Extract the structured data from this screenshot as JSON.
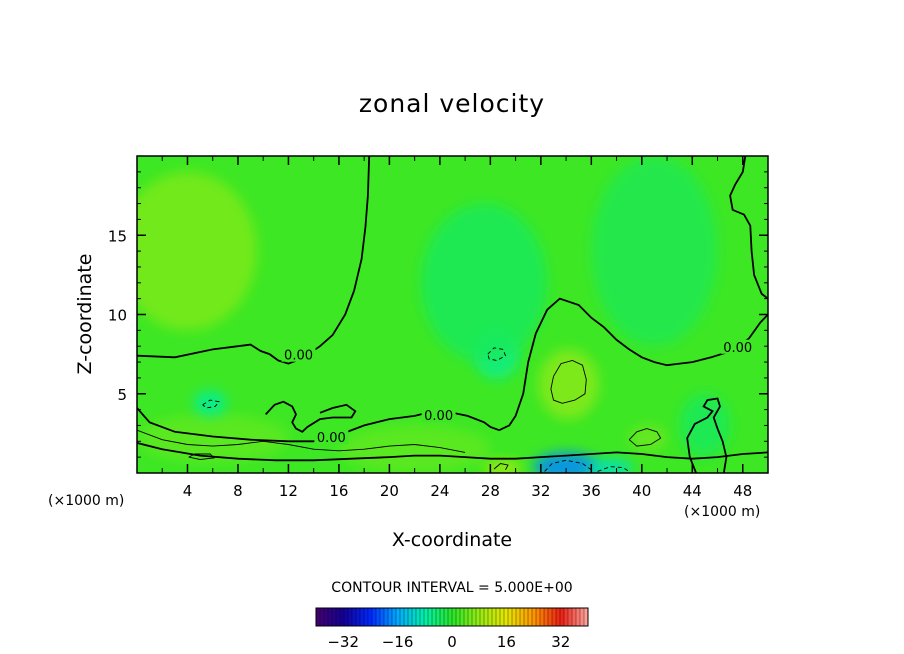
{
  "chart_data": {
    "type": "heatmap",
    "title": "zonal velocity",
    "xlabel": "X-coordinate",
    "ylabel": "Z-coordinate",
    "x_unit_left": "(×1000 m)",
    "x_unit_right": "(×1000 m)",
    "xlim": [
      0,
      50
    ],
    "ylim": [
      0,
      20
    ],
    "x_ticks": [
      4,
      8,
      12,
      16,
      20,
      24,
      28,
      32,
      36,
      40,
      44,
      48
    ],
    "y_ticks": [
      5,
      10,
      15
    ],
    "contour_interval_text": "CONTOUR INTERVAL = 5.000E+00",
    "colorbar": {
      "range": [
        -40,
        40
      ],
      "ticks": [
        -32,
        -16,
        0,
        16,
        32
      ],
      "colormap": "rainbow"
    },
    "zero_contour_labels": [
      {
        "text": "0.00",
        "x": 12.8,
        "z": 7.4
      },
      {
        "text": "0.00",
        "x": 15.4,
        "z": 2.2
      },
      {
        "text": "0.00",
        "x": 23.9,
        "z": 3.6
      },
      {
        "text": "0.00",
        "x": 47.6,
        "z": 7.9
      }
    ],
    "zero_contours": [
      [
        [
          0,
          7.4
        ],
        [
          3,
          7.3
        ],
        [
          6,
          7.8
        ],
        [
          8,
          8.0
        ],
        [
          9,
          8.1
        ],
        [
          9.8,
          7.7
        ],
        [
          10.5,
          7.5
        ],
        [
          11.2,
          7.1
        ],
        [
          12,
          6.9
        ],
        [
          13,
          7.2
        ],
        [
          14.5,
          8.0
        ],
        [
          15.5,
          8.7
        ],
        [
          16.5,
          10
        ],
        [
          17.2,
          11.5
        ],
        [
          17.8,
          13.5
        ],
        [
          18.1,
          15.5
        ],
        [
          18.3,
          17.5
        ],
        [
          18.4,
          20
        ]
      ],
      [
        [
          0,
          4.1
        ],
        [
          1,
          3.2
        ],
        [
          3,
          2.6
        ],
        [
          6,
          2.3
        ],
        [
          9,
          2.1
        ],
        [
          12,
          2.0
        ],
        [
          14,
          2.0
        ],
        [
          14.8,
          2.2
        ],
        [
          16,
          2.4
        ],
        [
          18,
          3.0
        ],
        [
          20,
          3.4
        ],
        [
          22,
          3.6
        ],
        [
          23,
          3.8
        ],
        [
          24,
          3.9
        ],
        [
          25,
          3.8
        ],
        [
          26.2,
          3.6
        ],
        [
          27.5,
          3.2
        ],
        [
          28,
          2.9
        ],
        [
          28.7,
          2.7
        ],
        [
          29.5,
          3.0
        ],
        [
          30,
          3.6
        ],
        [
          30.6,
          5
        ],
        [
          31,
          7
        ],
        [
          31.6,
          8.8
        ],
        [
          32.5,
          10.3
        ],
        [
          33.5,
          11
        ],
        [
          35,
          10.6
        ],
        [
          36,
          9.8
        ],
        [
          37,
          9.2
        ],
        [
          38,
          8.4
        ],
        [
          39,
          7.8
        ],
        [
          40,
          7.3
        ],
        [
          41,
          7.0
        ],
        [
          42,
          6.8
        ],
        [
          43,
          6.9
        ],
        [
          44,
          7.0
        ],
        [
          45.5,
          7.3
        ],
        [
          46.7,
          7.6
        ],
        [
          47.5,
          7.9
        ],
        [
          48.5,
          8.5
        ],
        [
          49.4,
          9.5
        ],
        [
          50,
          10
        ]
      ],
      [
        [
          0,
          1.9
        ],
        [
          2,
          1.5
        ],
        [
          5,
          1.1
        ],
        [
          8,
          0.9
        ],
        [
          11,
          0.8
        ],
        [
          14,
          0.8
        ],
        [
          17,
          0.9
        ],
        [
          20,
          1.0
        ],
        [
          22,
          1.1
        ],
        [
          24,
          1.1
        ],
        [
          26,
          1.0
        ],
        [
          28,
          0.9
        ],
        [
          30,
          0.9
        ],
        [
          32,
          1.0
        ],
        [
          34,
          1.1
        ],
        [
          36,
          1.2
        ],
        [
          38,
          1.3
        ],
        [
          40,
          1.2
        ],
        [
          42,
          1.0
        ],
        [
          44,
          0.9
        ],
        [
          46,
          1.0
        ],
        [
          48,
          1.2
        ],
        [
          50,
          1.3
        ]
      ],
      [
        [
          48.2,
          20
        ],
        [
          48,
          19
        ],
        [
          47.4,
          18.2
        ],
        [
          47,
          17.5
        ],
        [
          47.2,
          16.6
        ],
        [
          48.1,
          16.3
        ],
        [
          48.6,
          15.6
        ],
        [
          48.7,
          14
        ],
        [
          48.9,
          12.5
        ],
        [
          49.5,
          11.3
        ],
        [
          50,
          11
        ]
      ],
      [
        [
          10.2,
          3.7
        ],
        [
          10.9,
          4.3
        ],
        [
          11.6,
          4.5
        ],
        [
          12.3,
          4.2
        ],
        [
          12.6,
          3.7
        ],
        [
          12.3,
          3.2
        ],
        [
          12.6,
          2.8
        ],
        [
          13.1,
          2.6
        ],
        [
          13.5,
          2.9
        ],
        [
          14.5,
          3.4
        ],
        [
          15.5,
          3.5
        ],
        [
          17,
          3.5
        ],
        [
          17.3,
          3.9
        ],
        [
          16.6,
          4.3
        ],
        [
          15.5,
          4.1
        ],
        [
          14.5,
          3.8
        ]
      ],
      [
        [
          44.3,
          0
        ],
        [
          43.8,
          1.0
        ],
        [
          43.6,
          2.2
        ],
        [
          44.2,
          3.1
        ],
        [
          45.2,
          3.5
        ],
        [
          45.6,
          3.9
        ],
        [
          44.9,
          4.2
        ],
        [
          45.2,
          4.6
        ],
        [
          46,
          4.7
        ],
        [
          46.2,
          4.2
        ],
        [
          45.7,
          3.5
        ],
        [
          46,
          2.8
        ],
        [
          46.4,
          2.0
        ],
        [
          46.7,
          1.0
        ],
        [
          46.5,
          0
        ]
      ]
    ],
    "positive_contours": [
      [
        [
          0,
          2.7
        ],
        [
          2,
          2.1
        ],
        [
          4,
          1.8
        ],
        [
          6,
          1.7
        ],
        [
          8,
          1.8
        ],
        [
          10,
          2.0
        ],
        [
          12,
          1.8
        ],
        [
          14,
          1.5
        ],
        [
          16,
          1.4
        ],
        [
          18,
          1.5
        ],
        [
          20,
          1.7
        ],
        [
          22,
          1.8
        ],
        [
          24,
          1.6
        ],
        [
          26,
          1.3
        ]
      ],
      [
        [
          33.0,
          6.1
        ],
        [
          32.8,
          5.3
        ],
        [
          33.0,
          4.6
        ],
        [
          33.7,
          4.4
        ],
        [
          34.7,
          4.6
        ],
        [
          35.5,
          5.0
        ],
        [
          35.6,
          5.9
        ],
        [
          35.3,
          6.8
        ],
        [
          34.5,
          7.1
        ],
        [
          33.6,
          6.9
        ],
        [
          33.0,
          6.1
        ]
      ],
      [
        [
          4.1,
          1.0
        ],
        [
          5,
          0.85
        ],
        [
          6.1,
          0.95
        ],
        [
          5.8,
          1.2
        ],
        [
          4.6,
          1.2
        ],
        [
          4.1,
          1.0
        ]
      ],
      [
        [
          39.0,
          2.1
        ],
        [
          39.6,
          2.6
        ],
        [
          40.4,
          2.8
        ],
        [
          41.2,
          2.6
        ],
        [
          41.5,
          2.2
        ],
        [
          40.7,
          1.8
        ],
        [
          39.6,
          1.7
        ],
        [
          39.0,
          2.1
        ]
      ],
      [
        [
          28.3,
          0.25
        ],
        [
          28.8,
          0.6
        ],
        [
          29.4,
          0.5
        ],
        [
          29.2,
          0.2
        ]
      ]
    ],
    "negative_contours": [
      [
        [
          5.2,
          4.3
        ],
        [
          5.8,
          4.6
        ],
        [
          6.5,
          4.5
        ],
        [
          6.2,
          4.2
        ],
        [
          5.5,
          4.1
        ],
        [
          5.2,
          4.3
        ]
      ],
      [
        [
          27.8,
          7.5
        ],
        [
          28.3,
          7.9
        ],
        [
          29,
          7.8
        ],
        [
          29.2,
          7.4
        ],
        [
          28.5,
          7.1
        ],
        [
          27.9,
          7.2
        ],
        [
          27.8,
          7.5
        ]
      ],
      [
        [
          32.3,
          0.1
        ],
        [
          32.9,
          0.6
        ],
        [
          34,
          0.8
        ],
        [
          35.3,
          0.6
        ],
        [
          36,
          0.2
        ]
      ],
      [
        [
          36.5,
          0.1
        ],
        [
          37.5,
          0.4
        ],
        [
          38.5,
          0.35
        ],
        [
          39,
          0.1
        ]
      ]
    ],
    "color_blobs": [
      {
        "x": 4,
        "z": 14,
        "u": 6,
        "rx": 5.5,
        "rz": 5
      },
      {
        "x": 6,
        "z": 2.2,
        "u": 4,
        "rx": 6,
        "rz": 1.5
      },
      {
        "x": 22,
        "z": 1.5,
        "u": 4,
        "rx": 6,
        "rz": 1.5
      },
      {
        "x": 34.2,
        "z": 5.6,
        "u": 7,
        "rx": 2.4,
        "rz": 2.2
      },
      {
        "x": 28.5,
        "z": 7.5,
        "u": -6,
        "rx": 1.8,
        "rz": 1.6
      },
      {
        "x": 27.5,
        "z": 12,
        "u": -3,
        "rx": 5,
        "rz": 5
      },
      {
        "x": 5.8,
        "z": 4.4,
        "u": -7,
        "rx": 1.3,
        "rz": 0.8
      },
      {
        "x": 41,
        "z": 14,
        "u": -2.5,
        "rx": 5,
        "rz": 6
      },
      {
        "x": 34,
        "z": 0.4,
        "u": -18,
        "rx": 2.6,
        "rz": 0.9
      },
      {
        "x": 37.5,
        "z": 0.3,
        "u": -10,
        "rx": 1.8,
        "rz": 0.6
      },
      {
        "x": 29,
        "z": 0.3,
        "u": 10,
        "rx": 1.5,
        "rz": 0.5
      },
      {
        "x": 40.5,
        "z": 2.2,
        "u": 5,
        "rx": 1.5,
        "rz": 0.8
      },
      {
        "x": 45,
        "z": 3,
        "u": -3,
        "rx": 2,
        "rz": 2
      }
    ]
  }
}
